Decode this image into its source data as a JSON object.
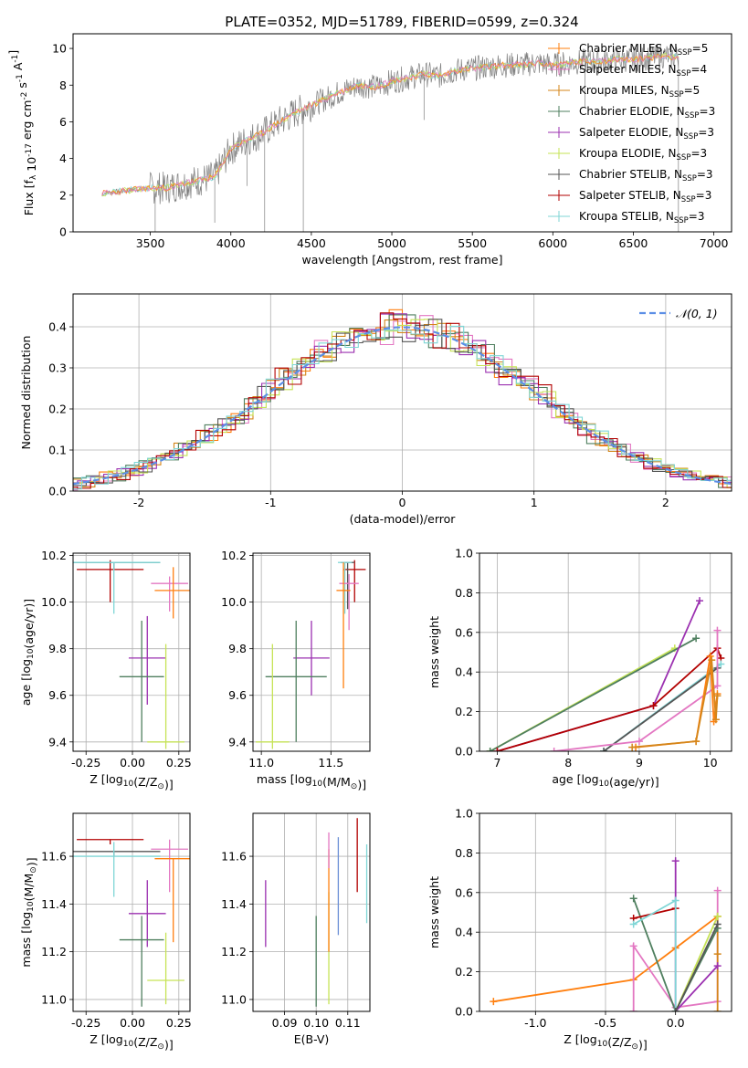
{
  "figure": {
    "title": "PLATE=0352, MJD=51789, FIBERID=0599, z=0.324"
  },
  "colors": {
    "Chabrier MILES": "#ff7f0e",
    "Salpeter MILES": "#e377c2",
    "Kroupa MILES": "#d4861a",
    "Chabrier ELODIE": "#4f7f5f",
    "Salpeter ELODIE": "#9b30b0",
    "Kroupa ELODIE": "#c6e356",
    "Chabrier STELIB": "#555555",
    "Salpeter STELIB": "#b20000",
    "Kroupa STELIB": "#7fd6d6",
    "data": "#808080",
    "normal": "#5b8ee6",
    "extra": "#6b8fd6"
  },
  "chart_data": [
    {
      "id": "spectrum",
      "type": "line",
      "title": "PLATE=0352, MJD=51789, FIBERID=0599, z=0.324",
      "xlabel": "wavelength [Angstrom, rest frame]",
      "ylabel": "Flux [f_λ 10^-17 erg cm^-2 s^-1 A^-1]",
      "xlim": [
        3020,
        7110
      ],
      "ylim": [
        0,
        10.8
      ],
      "xticks": [
        3500,
        4000,
        4500,
        5000,
        5500,
        6000,
        6500,
        7000
      ],
      "yticks": [
        0,
        2,
        4,
        6,
        8,
        10
      ],
      "grid": false,
      "legend_position": "top-right",
      "legend": [
        {
          "label": "Chabrier MILES, N",
          "sub": "SSP",
          "suffix": "=5"
        },
        {
          "label": "Salpeter MILES, N",
          "sub": "SSP",
          "suffix": "=4"
        },
        {
          "label": "Kroupa MILES, N",
          "sub": "SSP",
          "suffix": "=5"
        },
        {
          "label": "Chabrier ELODIE, N",
          "sub": "SSP",
          "suffix": "=3"
        },
        {
          "label": "Salpeter ELODIE, N",
          "sub": "SSP",
          "suffix": "=3"
        },
        {
          "label": "Kroupa ELODIE, N",
          "sub": "SSP",
          "suffix": "=3"
        },
        {
          "label": "Chabrier STELIB, N",
          "sub": "SSP",
          "suffix": "=3"
        },
        {
          "label": "Salpeter STELIB, N",
          "sub": "SSP",
          "suffix": "=3"
        },
        {
          "label": "Kroupa STELIB, N",
          "sub": "SSP",
          "suffix": "=3"
        }
      ],
      "continuum": {
        "x": [
          3200,
          3300,
          3400,
          3500,
          3600,
          3700,
          3800,
          3900,
          4000,
          4100,
          4200,
          4300,
          4400,
          4500,
          4600,
          4700,
          4800,
          4900,
          5000,
          5100,
          5200,
          5300,
          5400,
          5500,
          5600,
          5700,
          5800,
          5900,
          6000,
          6100,
          6200,
          6300,
          6400,
          6500,
          6600,
          6700,
          6800
        ],
        "y": [
          2.1,
          2.2,
          2.3,
          2.4,
          2.4,
          2.6,
          2.8,
          3.0,
          4.5,
          5.0,
          5.4,
          6.0,
          6.5,
          6.9,
          7.3,
          7.7,
          8.0,
          7.9,
          8.2,
          8.4,
          8.6,
          8.5,
          8.8,
          8.9,
          9.0,
          9.1,
          9.1,
          9.2,
          9.1,
          9.2,
          9.3,
          9.3,
          9.4,
          9.4,
          9.5,
          9.6,
          9.5
        ]
      }
    },
    {
      "id": "residuals",
      "type": "line",
      "title": "",
      "xlabel": "(data-model)/error",
      "ylabel": "Normed distribution",
      "xlim": [
        -2.5,
        2.5
      ],
      "ylim": [
        0,
        0.48
      ],
      "xticks": [
        -2,
        -1,
        0,
        1,
        2
      ],
      "yticks": [
        0.0,
        0.1,
        0.2,
        0.3,
        0.4
      ],
      "grid": true,
      "legend_position": "top-right",
      "legend": [
        {
          "label": "𝒩(0, 1)"
        }
      ],
      "normal": {
        "mean": 0,
        "sigma": 1
      }
    },
    {
      "id": "age-vs-Z",
      "type": "scatter",
      "xlabel": "Z [log10(Z/Z⊙)]",
      "ylabel": "age  [log10(age/yr)]",
      "xlim": [
        -0.32,
        0.31
      ],
      "ylim": [
        9.36,
        10.21
      ],
      "xticks": [
        -0.25,
        0.0,
        0.25
      ],
      "yticks": [
        9.4,
        9.6,
        9.8,
        10.0,
        10.2
      ],
      "grid": true,
      "points": [
        {
          "series": "Salpeter STELIB",
          "x": -0.12,
          "y": 10.14,
          "xerr": 0.18,
          "yerr": [
            0.14,
            0.04
          ]
        },
        {
          "series": "Chabrier STELIB",
          "x": -0.1,
          "y": 10.17,
          "xerr": 0.25,
          "yerr": [
            0.03,
            0.0
          ]
        },
        {
          "series": "Kroupa STELIB",
          "x": -0.1,
          "y": 10.17,
          "xerr": 0.25,
          "yerr": [
            0.22,
            0.0
          ]
        },
        {
          "series": "Salpeter MILES",
          "x": 0.2,
          "y": 10.08,
          "xerr": 0.1,
          "yerr": [
            0.12,
            0.03
          ]
        },
        {
          "series": "Chabrier MILES",
          "x": 0.22,
          "y": 10.05,
          "xerr": 0.1,
          "yerr": [
            0.12,
            0.1
          ]
        },
        {
          "series": "Salpeter ELODIE",
          "x": 0.08,
          "y": 9.76,
          "xerr": 0.1,
          "yerr": [
            0.2,
            0.18
          ]
        },
        {
          "series": "Chabrier ELODIE",
          "x": 0.05,
          "y": 9.68,
          "xerr": 0.12,
          "yerr": [
            0.28,
            0.24
          ]
        },
        {
          "series": "Kroupa ELODIE",
          "x": 0.18,
          "y": 9.4,
          "xerr": 0.1,
          "yerr": [
            0.03,
            0.42
          ]
        }
      ]
    },
    {
      "id": "age-vs-mass",
      "type": "scatter",
      "xlabel": "mass [log10(M/M⊙)]",
      "ylabel": "",
      "xlim": [
        10.94,
        11.78
      ],
      "ylim": [
        9.36,
        10.21
      ],
      "xticks": [
        11.0,
        11.5
      ],
      "yticks": [
        9.4,
        9.6,
        9.8,
        10.0,
        10.2
      ],
      "grid": true,
      "points": [
        {
          "series": "Salpeter STELIB",
          "x": 11.67,
          "y": 10.14,
          "xerr": 0.08,
          "yerr": [
            0.14,
            0.04
          ]
        },
        {
          "series": "Chabrier STELIB",
          "x": 11.62,
          "y": 10.17,
          "xerr": 0.05,
          "yerr": [
            0.2,
            0.0
          ]
        },
        {
          "series": "Kroupa STELIB",
          "x": 11.6,
          "y": 10.17,
          "xerr": 0.05,
          "yerr": [
            0.22,
            0.0
          ]
        },
        {
          "series": "Salpeter MILES",
          "x": 11.63,
          "y": 10.08,
          "xerr": 0.07,
          "yerr": [
            0.2,
            0.04
          ]
        },
        {
          "series": "Chabrier MILES",
          "x": 11.59,
          "y": 10.05,
          "xerr": 0.05,
          "yerr": [
            0.42,
            0.12
          ]
        },
        {
          "series": "Salpeter ELODIE",
          "x": 11.36,
          "y": 9.76,
          "xerr": 0.13,
          "yerr": [
            0.16,
            0.16
          ]
        },
        {
          "series": "Chabrier ELODIE",
          "x": 11.25,
          "y": 9.68,
          "xerr": 0.22,
          "yerr": [
            0.28,
            0.24
          ]
        },
        {
          "series": "Kroupa ELODIE",
          "x": 11.08,
          "y": 9.4,
          "xerr": 0.12,
          "yerr": [
            0.03,
            0.42
          ]
        }
      ]
    },
    {
      "id": "weight-vs-age",
      "type": "line",
      "xlabel": "age  [log10(age/yr)]",
      "ylabel": "mass weight",
      "xlim": [
        6.75,
        10.3
      ],
      "ylim": [
        0,
        1.0
      ],
      "xticks": [
        7,
        8,
        9,
        10
      ],
      "yticks": [
        0.0,
        0.2,
        0.4,
        0.6,
        0.8,
        1.0
      ],
      "grid": true,
      "series": [
        {
          "name": "Kroupa ELODIE",
          "x": [
            6.9,
            9.5
          ],
          "y": [
            0.0,
            0.52
          ]
        },
        {
          "name": "Chabrier ELODIE",
          "x": [
            6.9,
            9.8
          ],
          "y": [
            0.0,
            0.57
          ]
        },
        {
          "name": "Salpeter ELODIE",
          "x": [
            7.0,
            9.2,
            9.85
          ],
          "y": [
            0.0,
            0.23,
            0.76
          ]
        },
        {
          "name": "Salpeter STELIB",
          "x": [
            7.0,
            9.2,
            10.1,
            10.15
          ],
          "y": [
            0.0,
            0.23,
            0.52,
            0.47
          ]
        },
        {
          "name": "Kroupa STELIB",
          "x": [
            8.5,
            10.15
          ],
          "y": [
            0.0,
            0.44
          ]
        },
        {
          "name": "Chabrier STELIB",
          "x": [
            8.5,
            10.1
          ],
          "y": [
            0.0,
            0.42
          ]
        },
        {
          "name": "Salpeter MILES",
          "x": [
            7.8,
            9.0,
            10.1,
            10.1
          ],
          "y": [
            0.0,
            0.05,
            0.33,
            0.61
          ]
        },
        {
          "name": "Chabrier MILES",
          "x": [
            8.95,
            9.8,
            10.0,
            10.05,
            10.1
          ],
          "y": [
            0.02,
            0.05,
            0.48,
            0.15,
            0.29
          ]
        },
        {
          "name": "Kroupa MILES",
          "x": [
            8.9,
            9.8,
            10.02,
            10.08,
            10.1
          ],
          "y": [
            0.02,
            0.05,
            0.46,
            0.16,
            0.28
          ]
        }
      ]
    },
    {
      "id": "mass-vs-Z",
      "type": "scatter",
      "xlabel": "Z [log10(Z/Z⊙)]",
      "ylabel": "mass [log10(M/M⊙)]",
      "xlim": [
        -0.32,
        0.31
      ],
      "ylim": [
        10.95,
        11.78
      ],
      "xticks": [
        -0.25,
        0.0,
        0.25
      ],
      "yticks": [
        11.0,
        11.2,
        11.4,
        11.6
      ],
      "grid": true,
      "points": [
        {
          "series": "Salpeter STELIB",
          "x": -0.12,
          "y": 11.67,
          "xerr": 0.18,
          "yerr": [
            0.02,
            0.0
          ]
        },
        {
          "series": "Chabrier STELIB",
          "x": -0.1,
          "y": 11.62,
          "xerr": 0.25,
          "yerr": [
            0.02,
            0.0
          ]
        },
        {
          "series": "Kroupa STELIB",
          "x": -0.1,
          "y": 11.6,
          "xerr": 0.25,
          "yerr": [
            0.17,
            0.06
          ]
        },
        {
          "series": "Salpeter MILES",
          "x": 0.2,
          "y": 11.63,
          "xerr": 0.1,
          "yerr": [
            0.18,
            0.04
          ]
        },
        {
          "series": "Chabrier MILES",
          "x": 0.22,
          "y": 11.59,
          "xerr": 0.1,
          "yerr": [
            0.35,
            0.0
          ]
        },
        {
          "series": "Salpeter ELODIE",
          "x": 0.08,
          "y": 11.36,
          "xerr": 0.1,
          "yerr": [
            0.14,
            0.14
          ]
        },
        {
          "series": "Chabrier ELODIE",
          "x": 0.05,
          "y": 11.25,
          "xerr": 0.12,
          "yerr": [
            0.28,
            0.1
          ]
        },
        {
          "series": "Kroupa ELODIE",
          "x": 0.18,
          "y": 11.08,
          "xerr": 0.1,
          "yerr": [
            0.1,
            0.2
          ]
        }
      ]
    },
    {
      "id": "mass-vs-EBV",
      "type": "scatter",
      "xlabel": "E(B-V)",
      "ylabel": "",
      "xlim": [
        0.08,
        0.117
      ],
      "ylim": [
        10.95,
        11.78
      ],
      "xticks": [
        0.09,
        0.1,
        0.11
      ],
      "yticks": [
        11.0,
        11.2,
        11.4,
        11.6
      ],
      "grid": true,
      "points": [
        {
          "series": "Salpeter ELODIE",
          "x": 0.084,
          "y": 11.36,
          "yerr": [
            0.14,
            0.14
          ]
        },
        {
          "series": "Chabrier ELODIE",
          "x": 0.1,
          "y": 11.25,
          "yerr": [
            0.28,
            0.1
          ]
        },
        {
          "series": "Kroupa ELODIE",
          "x": 0.104,
          "y": 11.2,
          "yerr": [
            0.22,
            0.25
          ]
        },
        {
          "series": "Chabrier MILES",
          "x": 0.104,
          "y": 11.55,
          "yerr": [
            0.35,
            0.08
          ]
        },
        {
          "series": "Salpeter MILES",
          "x": 0.104,
          "y": 11.65,
          "yerr": [
            0.1,
            0.05
          ]
        },
        {
          "series": "extra",
          "x": 0.107,
          "y": 11.47,
          "yerr": [
            0.2,
            0.21
          ]
        },
        {
          "series": "Salpeter STELIB",
          "x": 0.113,
          "y": 11.65,
          "yerr": [
            0.2,
            0.11
          ]
        },
        {
          "series": "Kroupa STELIB",
          "x": 0.116,
          "y": 11.5,
          "yerr": [
            0.18,
            0.15
          ]
        }
      ]
    },
    {
      "id": "weight-vs-Z",
      "type": "line",
      "xlabel": "Z [log10(Z/Z⊙)]",
      "ylabel": "mass weight",
      "xlim": [
        -1.4,
        0.4
      ],
      "ylim": [
        0,
        1.0
      ],
      "xticks": [
        -1.0,
        -0.5,
        0.0
      ],
      "yticks": [
        0.0,
        0.2,
        0.4,
        0.6,
        0.8,
        1.0
      ],
      "grid": true,
      "series": [
        {
          "name": "Chabrier MILES",
          "x": [
            -1.3,
            -0.3,
            0.0,
            0.3
          ],
          "y": [
            0.05,
            0.16,
            0.32,
            0.48
          ]
        },
        {
          "name": "Salpeter MILES",
          "x": [
            -0.3,
            -0.3,
            0.0,
            0.3,
            0.3
          ],
          "y": [
            0.0,
            0.33,
            0.02,
            0.05,
            0.61
          ]
        },
        {
          "name": "Kroupa MILES",
          "x": [
            0.3,
            0.3,
            0.3
          ],
          "y": [
            0.0,
            0.29,
            0.48
          ]
        },
        {
          "name": "Chabrier ELODIE",
          "x": [
            -0.3,
            0.0,
            0.3
          ],
          "y": [
            0.57,
            0.0,
            0.42
          ]
        },
        {
          "name": "Salpeter ELODIE",
          "x": [
            0.0,
            0.0,
            0.3
          ],
          "y": [
            0.76,
            0.0,
            0.23
          ]
        },
        {
          "name": "Kroupa ELODIE",
          "x": [
            0.0,
            0.3
          ],
          "y": [
            0.0,
            0.48
          ]
        },
        {
          "name": "Salpeter STELIB",
          "x": [
            -0.3,
            0.0
          ],
          "y": [
            0.47,
            0.52
          ]
        },
        {
          "name": "Kroupa STELIB",
          "x": [
            -0.3,
            0.0,
            0.0
          ],
          "y": [
            0.44,
            0.56,
            0.0
          ]
        },
        {
          "name": "Chabrier STELIB",
          "x": [
            0.0,
            0.3
          ],
          "y": [
            0.0,
            0.44
          ]
        }
      ]
    }
  ]
}
